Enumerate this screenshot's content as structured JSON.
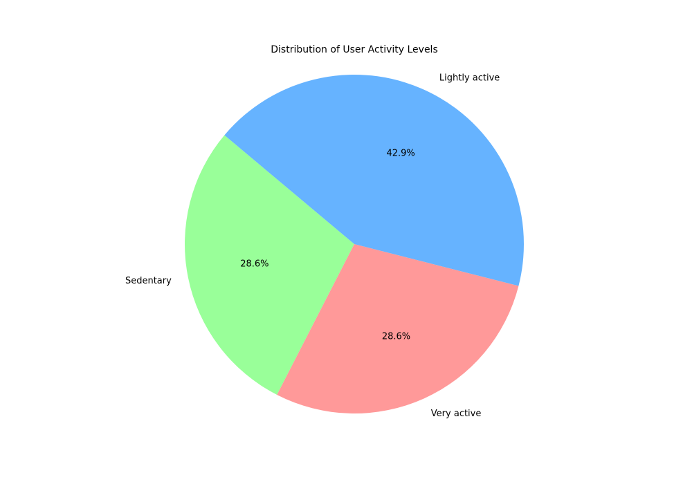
{
  "chart_data": {
    "type": "pie",
    "title": "Distribution of User Activity Levels",
    "slices": [
      {
        "label": "Sedentary",
        "value": 28.6,
        "pct_label": "28.6%",
        "color": "#99ff99"
      },
      {
        "label": "Very active",
        "value": 28.6,
        "pct_label": "28.6%",
        "color": "#ff9999"
      },
      {
        "label": "Lightly active",
        "value": 42.9,
        "pct_label": "42.9%",
        "color": "#66b3ff"
      }
    ],
    "start_angle_deg": 140,
    "direction": "counterclockwise",
    "legend": "none"
  }
}
